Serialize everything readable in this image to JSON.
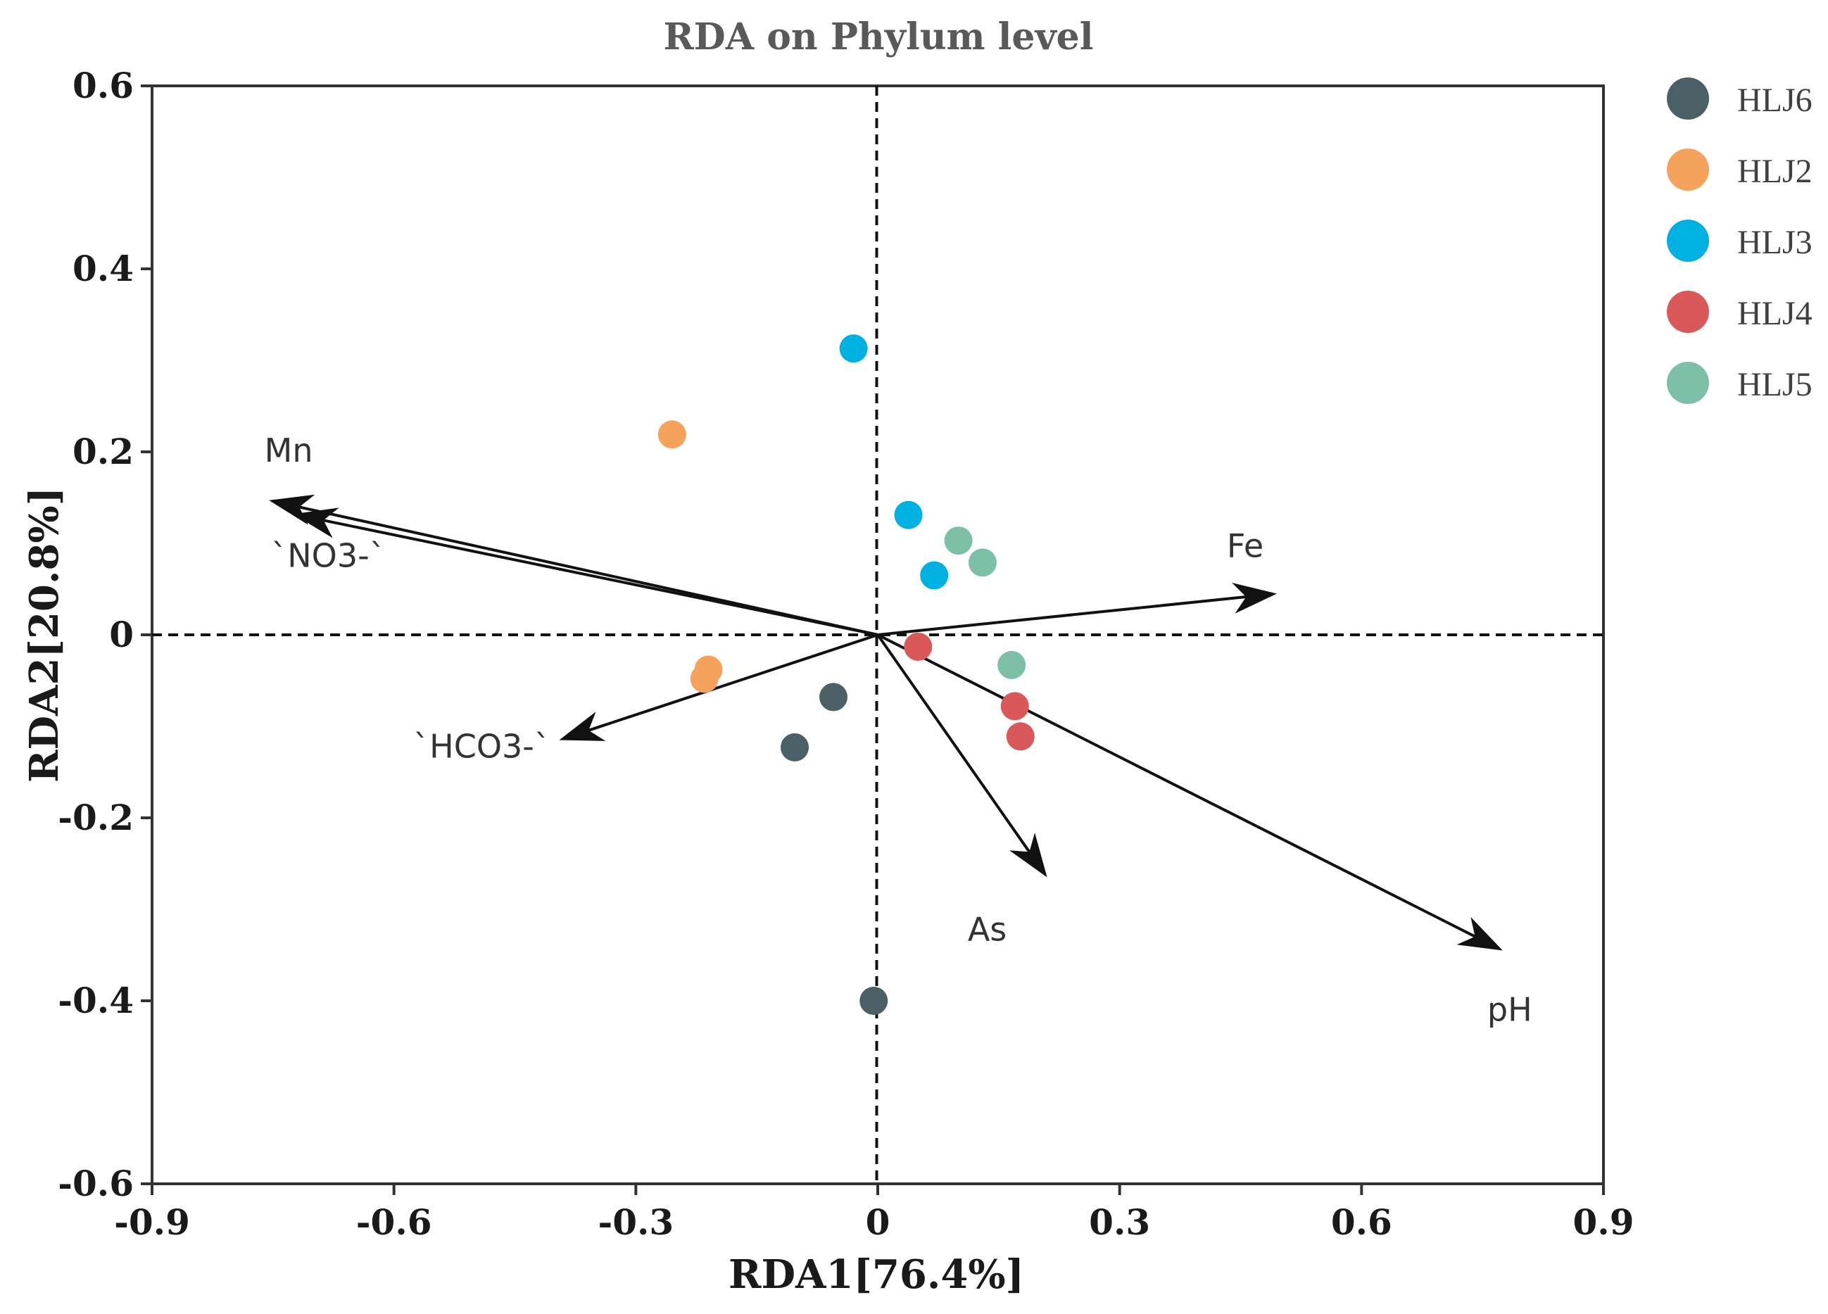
{
  "chart_data": {
    "type": "scatter",
    "title": "RDA on Phylum level",
    "xlabel": "RDA1[76.4%]",
    "ylabel": "RDA2[20.8%]",
    "xlim": [
      -0.9,
      0.9
    ],
    "ylim": [
      -0.6,
      0.6
    ],
    "x_ticks": [
      -0.9,
      -0.6,
      -0.3,
      0,
      0.3,
      0.6,
      0.9
    ],
    "x_tick_labels": [
      "-0.9",
      "-0.6",
      "-0.3",
      "0",
      "0.3",
      "0.6",
      "0.9"
    ],
    "y_ticks": [
      -0.6,
      -0.4,
      -0.2,
      0,
      0.2,
      0.4,
      0.6
    ],
    "y_tick_labels": [
      "-0.6",
      "-0.4",
      "-0.2",
      "0",
      "0.2",
      "0.4",
      "0.6"
    ],
    "grid": false,
    "legend_position": "outside-right",
    "series": [
      {
        "name": "HLJ6",
        "color": "#4a5f66",
        "points": [
          [
            -0.055,
            -0.068
          ],
          [
            -0.103,
            -0.123
          ],
          [
            -0.005,
            -0.4
          ]
        ]
      },
      {
        "name": "HLJ2",
        "color": "#f5a35c",
        "points": [
          [
            -0.255,
            0.219
          ],
          [
            -0.21,
            -0.038
          ],
          [
            -0.215,
            -0.048
          ]
        ]
      },
      {
        "name": "HLJ3",
        "color": "#00b0e0",
        "points": [
          [
            -0.03,
            0.313
          ],
          [
            0.038,
            0.131
          ],
          [
            0.07,
            0.065
          ]
        ]
      },
      {
        "name": "HLJ4",
        "color": "#d9595a",
        "points": [
          [
            0.05,
            -0.013
          ],
          [
            0.17,
            -0.078
          ],
          [
            0.177,
            -0.111
          ]
        ]
      },
      {
        "name": "HLJ5",
        "color": "#7ebfa8",
        "points": [
          [
            0.1,
            0.103
          ],
          [
            0.13,
            0.079
          ],
          [
            0.166,
            -0.033
          ]
        ]
      }
    ],
    "arrows": [
      {
        "label": "Mn",
        "x": -0.755,
        "y": 0.147
      },
      {
        "label": "`NO3-`",
        "x": -0.725,
        "y": 0.132
      },
      {
        "label": "Fe",
        "x": 0.495,
        "y": 0.045
      },
      {
        "label": "`HCO3-`",
        "x": -0.395,
        "y": -0.115
      },
      {
        "label": "As",
        "x": 0.21,
        "y": -0.265
      },
      {
        "label": "pH",
        "x": 0.775,
        "y": -0.345
      }
    ]
  }
}
